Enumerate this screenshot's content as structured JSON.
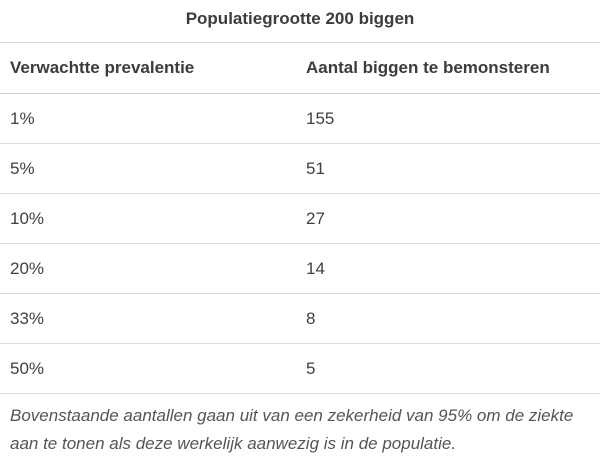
{
  "caption": "Populatiegrootte 200 biggen",
  "columns": {
    "prevalence": "Verwachtte prevalentie",
    "sample": "Aantal biggen te bemonsteren"
  },
  "rows": [
    {
      "prevalence": "1%",
      "sample": "155"
    },
    {
      "prevalence": "5%",
      "sample": "51"
    },
    {
      "prevalence": "10%",
      "sample": "27"
    },
    {
      "prevalence": "20%",
      "sample": "14"
    },
    {
      "prevalence": "33%",
      "sample": "8"
    },
    {
      "prevalence": "50%",
      "sample": "5"
    }
  ],
  "footnote": "Bovenstaande aantallen gaan uit van een zekerheid van 95% om de ziekte aan te tonen als deze werkelijk aanwezig is in de populatie."
}
